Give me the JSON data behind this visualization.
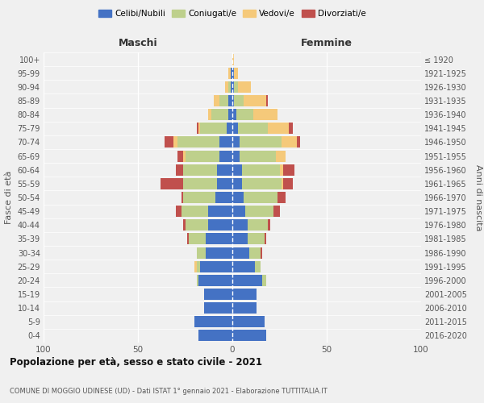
{
  "age_groups_display": [
    "0-4",
    "5-9",
    "10-14",
    "15-19",
    "20-24",
    "25-29",
    "30-34",
    "35-39",
    "40-44",
    "45-49",
    "50-54",
    "55-59",
    "60-64",
    "65-69",
    "70-74",
    "75-79",
    "80-84",
    "85-89",
    "90-94",
    "95-99",
    "100+"
  ],
  "birth_years_display": [
    "2016-2020",
    "2011-2015",
    "2006-2010",
    "2001-2005",
    "1996-2000",
    "1991-1995",
    "1986-1990",
    "1981-1985",
    "1976-1980",
    "1971-1975",
    "1966-1970",
    "1961-1965",
    "1956-1960",
    "1951-1955",
    "1946-1950",
    "1941-1945",
    "1936-1940",
    "1931-1935",
    "1926-1930",
    "1921-1925",
    "≤ 1920"
  ],
  "colors": {
    "celibi": "#4472C4",
    "coniugati": "#BED08C",
    "vedovi": "#F5C97A",
    "divorziati": "#C0504D"
  },
  "males": {
    "celibi": [
      18,
      20,
      15,
      15,
      18,
      17,
      14,
      14,
      13,
      13,
      9,
      8,
      8,
      7,
      7,
      3,
      2,
      2,
      1,
      1,
      0
    ],
    "coniugati": [
      0,
      0,
      0,
      0,
      1,
      2,
      5,
      9,
      12,
      14,
      17,
      18,
      18,
      18,
      22,
      14,
      9,
      5,
      1,
      0,
      0
    ],
    "vedovi": [
      0,
      0,
      0,
      0,
      0,
      1,
      0,
      0,
      0,
      0,
      0,
      0,
      0,
      1,
      2,
      1,
      2,
      3,
      2,
      1,
      0
    ],
    "divorziati": [
      0,
      0,
      0,
      0,
      0,
      0,
      0,
      1,
      1,
      3,
      1,
      12,
      4,
      3,
      5,
      1,
      0,
      0,
      0,
      0,
      0
    ]
  },
  "females": {
    "nubili": [
      18,
      17,
      13,
      13,
      16,
      12,
      9,
      8,
      8,
      7,
      6,
      5,
      5,
      4,
      4,
      3,
      2,
      1,
      1,
      1,
      0
    ],
    "coniugate": [
      0,
      0,
      0,
      0,
      2,
      3,
      6,
      9,
      11,
      15,
      18,
      21,
      20,
      19,
      22,
      16,
      9,
      5,
      2,
      0,
      0
    ],
    "vedove": [
      0,
      0,
      0,
      0,
      0,
      0,
      0,
      0,
      0,
      0,
      0,
      1,
      2,
      5,
      8,
      11,
      13,
      12,
      7,
      2,
      1
    ],
    "divorziate": [
      0,
      0,
      0,
      0,
      0,
      0,
      1,
      1,
      1,
      3,
      4,
      5,
      6,
      0,
      2,
      2,
      0,
      1,
      0,
      0,
      0
    ]
  },
  "xlim": [
    -100,
    100
  ],
  "xticks": [
    -100,
    -50,
    0,
    50,
    100
  ],
  "xticklabels": [
    "100",
    "50",
    "0",
    "50",
    "100"
  ],
  "title": "Popolazione per età, sesso e stato civile - 2021",
  "subtitle": "COMUNE DI MOGGIO UDINESE (UD) - Dati ISTAT 1° gennaio 2021 - Elaborazione TUTTITALIA.IT",
  "ylabel_left": "Fasce di età",
  "ylabel_right": "Anni di nascita",
  "label_maschi": "Maschi",
  "label_femmine": "Femmine",
  "legend_labels": [
    "Celibi/Nubili",
    "Coniugati/e",
    "Vedovi/e",
    "Divorziati/e"
  ],
  "background_color": "#F0F0F0",
  "bar_height": 0.82
}
